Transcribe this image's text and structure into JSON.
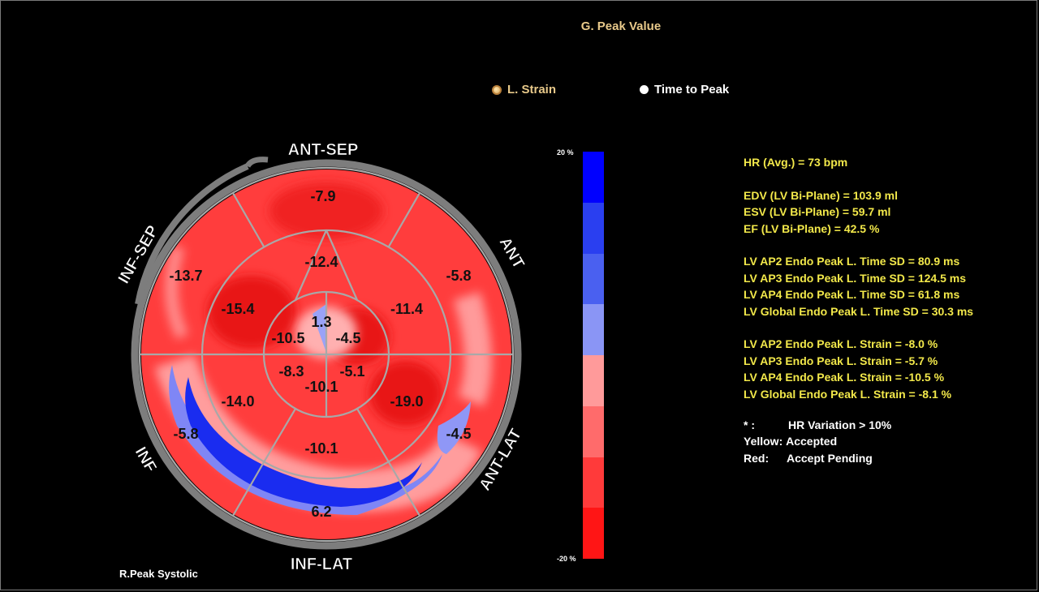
{
  "header": {
    "title": "G. Peak Value"
  },
  "mode_options": {
    "strain_label": "L. Strain",
    "time_label": "Time to Peak",
    "selected": "L. Strain"
  },
  "bullseye": {
    "wall_labels": {
      "ant_sep": "ANT-SEP",
      "ant": "ANT",
      "ant_lat": "ANT-LAT",
      "inf_lat": "INF-LAT",
      "inf": "INF",
      "inf_sep": "INF-SEP"
    },
    "basal": {
      "ant_sep": "-7.9",
      "ant": "-5.8",
      "ant_lat": "-4.5",
      "inf_lat": "6.2",
      "inf": "-5.8",
      "inf_sep": "-13.7"
    },
    "mid": {
      "ant_sep": "-12.4",
      "ant": "-11.4",
      "ant_lat": "-19.0",
      "inf_lat": "-10.1",
      "inf": "-14.0",
      "inf_sep": "-15.4"
    },
    "apical": {
      "ant": "1.3",
      "lat": "-4.5",
      "inf": "-5.1",
      "inf_lat": "-10.1",
      "sep_inf": "-8.3",
      "sep": "-10.5"
    }
  },
  "colorbar": {
    "max_label": "20 %",
    "min_label": "-20 %",
    "colors": [
      "#0000ff",
      "#2a3ff0",
      "#4a60f0",
      "#8a95f5",
      "#ff9a9a",
      "#ff6b6b",
      "#ff3a3a",
      "#ff1515"
    ]
  },
  "stats": {
    "hr": "HR (Avg.) = 73 bpm",
    "edv": "EDV (LV Bi-Plane) = 103.9 ml",
    "esv": "ESV (LV Bi-Plane) = 59.7 ml",
    "ef": "EF (LV Bi-Plane) = 42.5 %",
    "ap2_time": "LV AP2 Endo Peak L. Time SD = 80.9 ms",
    "ap3_time": "LV AP3 Endo Peak L. Time SD = 124.5 ms",
    "ap4_time": "LV AP4 Endo Peak L. Time SD = 61.8 ms",
    "global_time": "LV Global Endo Peak L. Time SD = 30.3 ms",
    "ap2_strain": "LV AP2 Endo Peak L. Strain = -8.0 %",
    "ap3_strain": "LV AP3 Endo Peak L. Strain = -5.7 %",
    "ap4_strain": "LV AP4 Endo Peak L. Strain = -10.5 %",
    "global_strain": "LV Global Endo Peak L. Strain = -8.1 %"
  },
  "legend": {
    "star_key": "* :",
    "star_value": "HR Variation > 10%",
    "yellow_key": "Yellow:",
    "yellow_value": "Accepted",
    "red_key": "Red:",
    "red_value": "Accept Pending"
  },
  "footer": {
    "phase": "R.Peak Systolic"
  },
  "colors": {
    "background": "#000000",
    "accent_gold": "#e8c98a",
    "stats_yellow": "#f2e84a",
    "strain_red": "#ff3a3a",
    "strain_blue": "#1a2cf0"
  }
}
